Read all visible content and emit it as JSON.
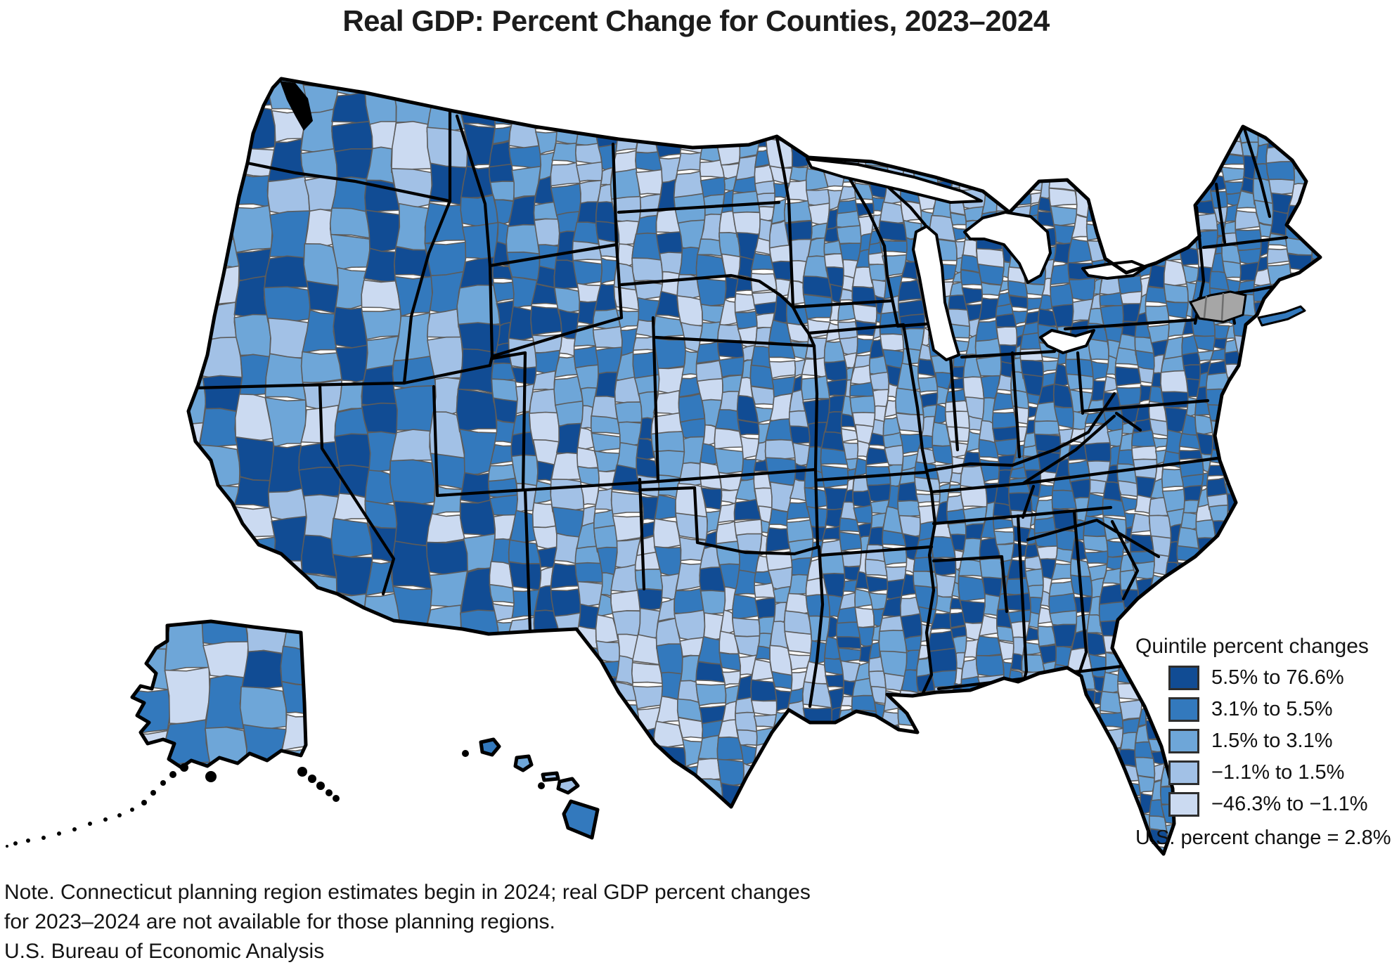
{
  "title": "Real GDP: Percent Change for Counties, 2023–2024",
  "legend": {
    "title": "Quintile percent changes",
    "entries": [
      {
        "label": "5.5% to 76.6%",
        "color": "#114c94"
      },
      {
        "label": "3.1% to 5.5%",
        "color": "#3379bd"
      },
      {
        "label": "1.5% to 3.1%",
        "color": "#6ea6d8"
      },
      {
        "label": "−1.1% to 1.5%",
        "color": "#a2c1e6"
      },
      {
        "label": "−46.3% to −1.1%",
        "color": "#cbdaf1"
      }
    ],
    "us_change": "U.S. percent change = 2.8%"
  },
  "note": {
    "line1": "Note. Connecticut planning region estimates begin in 2024; real GDP percent changes",
    "line2": "for 2023–2024 are not available for those planning regions."
  },
  "source": "U.S. Bureau of Economic Analysis",
  "map": {
    "no_data_color": "#a6a6a6",
    "no_data_border_color": "#6e6e6e",
    "county_border_color": "#5c5c5c",
    "state_border_color": "#000000",
    "water_color": "#ffffff"
  }
}
